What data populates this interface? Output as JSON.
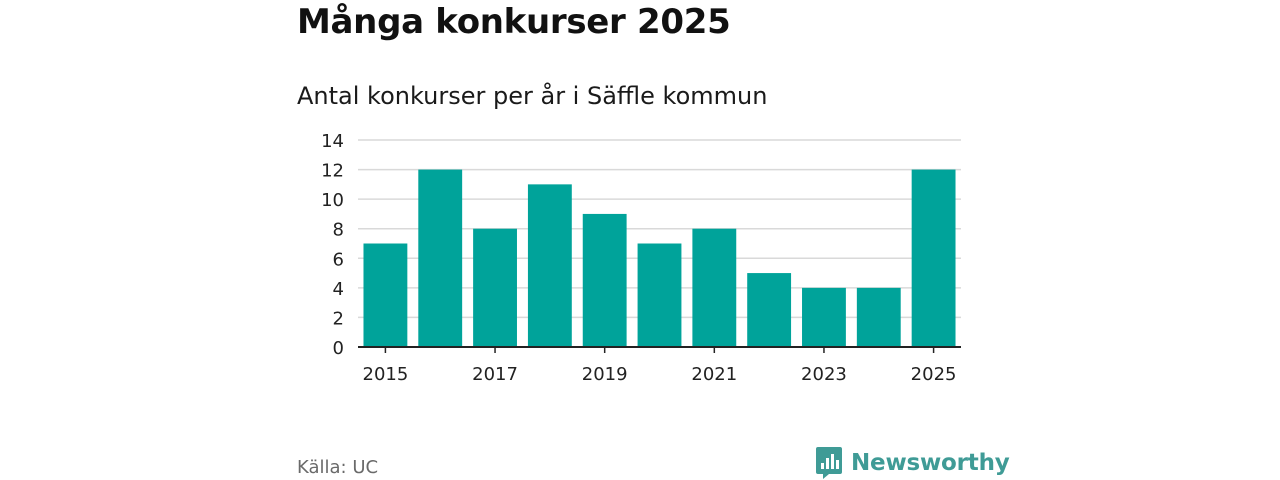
{
  "title": "Många konkurser 2025",
  "source": "Källa: UC",
  "brand": {
    "name": "Newsworthy",
    "icon": "newsworthy-logo-icon",
    "color": "#3f9b96"
  },
  "colors": {
    "bar": "#00a39a",
    "grid": "#d9d9d9",
    "axis": "#222222"
  },
  "chart_data": {
    "type": "bar",
    "title": "Antal konkurser per år i Säffle kommun",
    "xlabel": "",
    "ylabel": "",
    "categories": [
      "2015",
      "2016",
      "2017",
      "2018",
      "2019",
      "2020",
      "2021",
      "2022",
      "2023",
      "2024",
      "2025"
    ],
    "values": [
      7,
      12,
      8,
      11,
      9,
      7,
      8,
      5,
      4,
      4,
      12
    ],
    "x_tick_labels": [
      "2015",
      "2017",
      "2019",
      "2021",
      "2023",
      "2025"
    ],
    "y_ticks": [
      0,
      2,
      4,
      6,
      8,
      10,
      12,
      14
    ],
    "ylim": [
      0,
      14
    ],
    "grid": true,
    "legend": "none"
  }
}
